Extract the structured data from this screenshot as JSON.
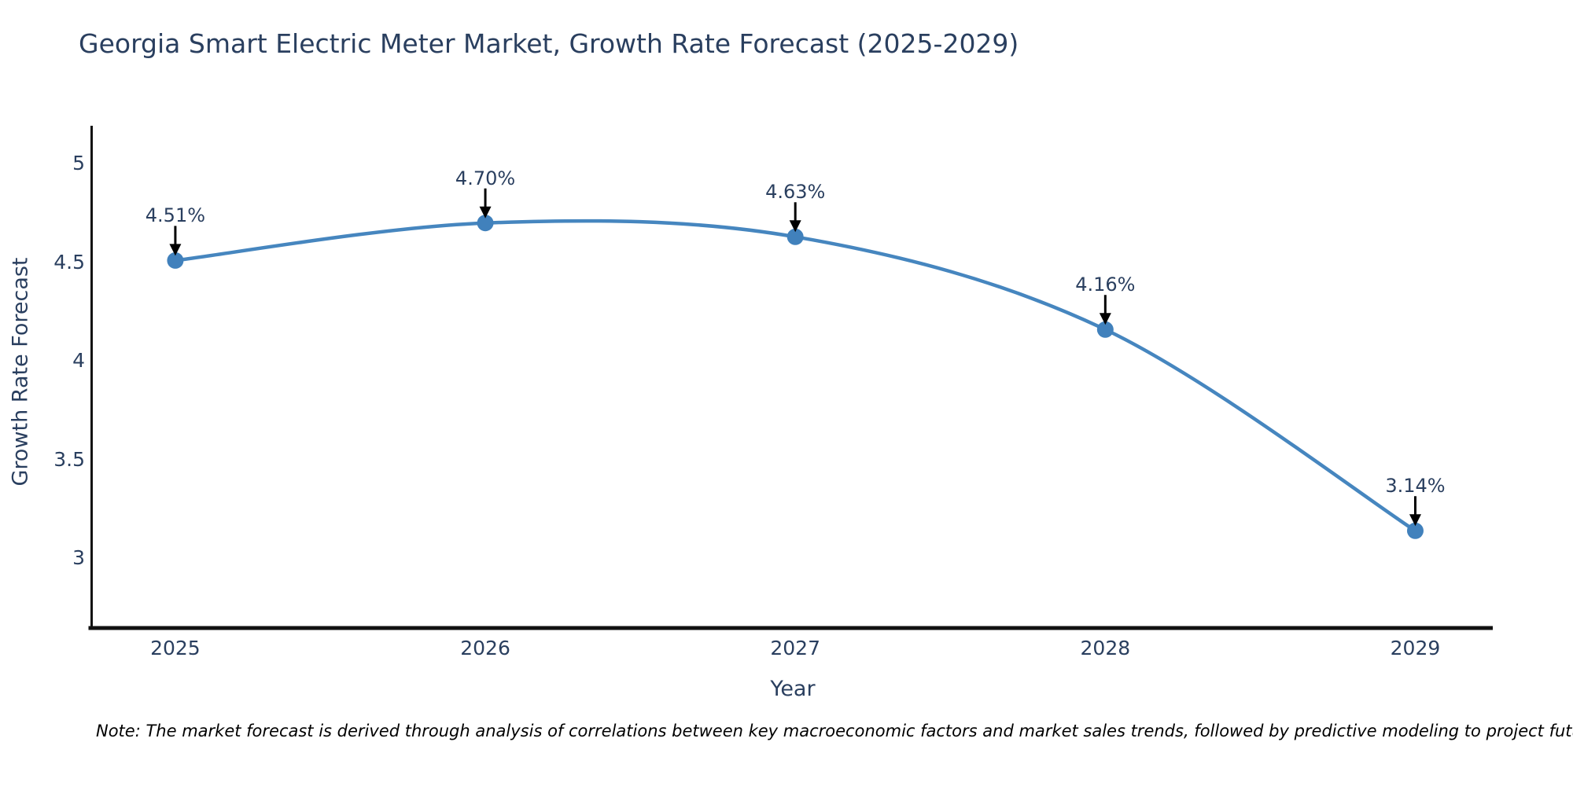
{
  "header": {
    "title": "Georgia Smart Electric Meter Market, Growth Rate Forecast (2025-2029)"
  },
  "footer": {
    "note": "Note: The market forecast is derived through analysis of correlations between key macroeconomic factors and market sales trends, followed by predictive modeling to project future sales"
  },
  "chart_data": {
    "type": "line",
    "title": "Georgia Smart Electric Meter Market, Growth Rate Forecast (2025-2029)",
    "xlabel": "Year",
    "ylabel": "Growth Rate Forecast",
    "x": [
      2025,
      2026,
      2027,
      2028,
      2029
    ],
    "values": [
      4.51,
      4.7,
      4.63,
      4.16,
      3.14
    ],
    "point_labels": [
      "4.51%",
      "4.70%",
      "4.63%",
      "4.16%",
      "3.14%"
    ],
    "x_tick_labels": [
      "2025",
      "2026",
      "2027",
      "2028",
      "2029"
    ],
    "x_tick_values": [
      2025,
      2026,
      2027,
      2028,
      2029
    ],
    "y_tick_labels": [
      "5",
      "4.5",
      "4",
      "3.5",
      "3"
    ],
    "y_tick_values": [
      5,
      4.5,
      4,
      3.5,
      3
    ],
    "xlim": [
      2024.73,
      2029.25
    ],
    "ylim": [
      2.647,
      5.193
    ],
    "grid": false,
    "line_shape": "spline",
    "legend_position": "none",
    "colors": {
      "line": "#4686bf",
      "marker": "#4181bc",
      "text": "#2a3f5f",
      "axis_line": "#111111",
      "arrow": "#000000",
      "note_text": "#000000",
      "background": "#ffffff"
    }
  }
}
